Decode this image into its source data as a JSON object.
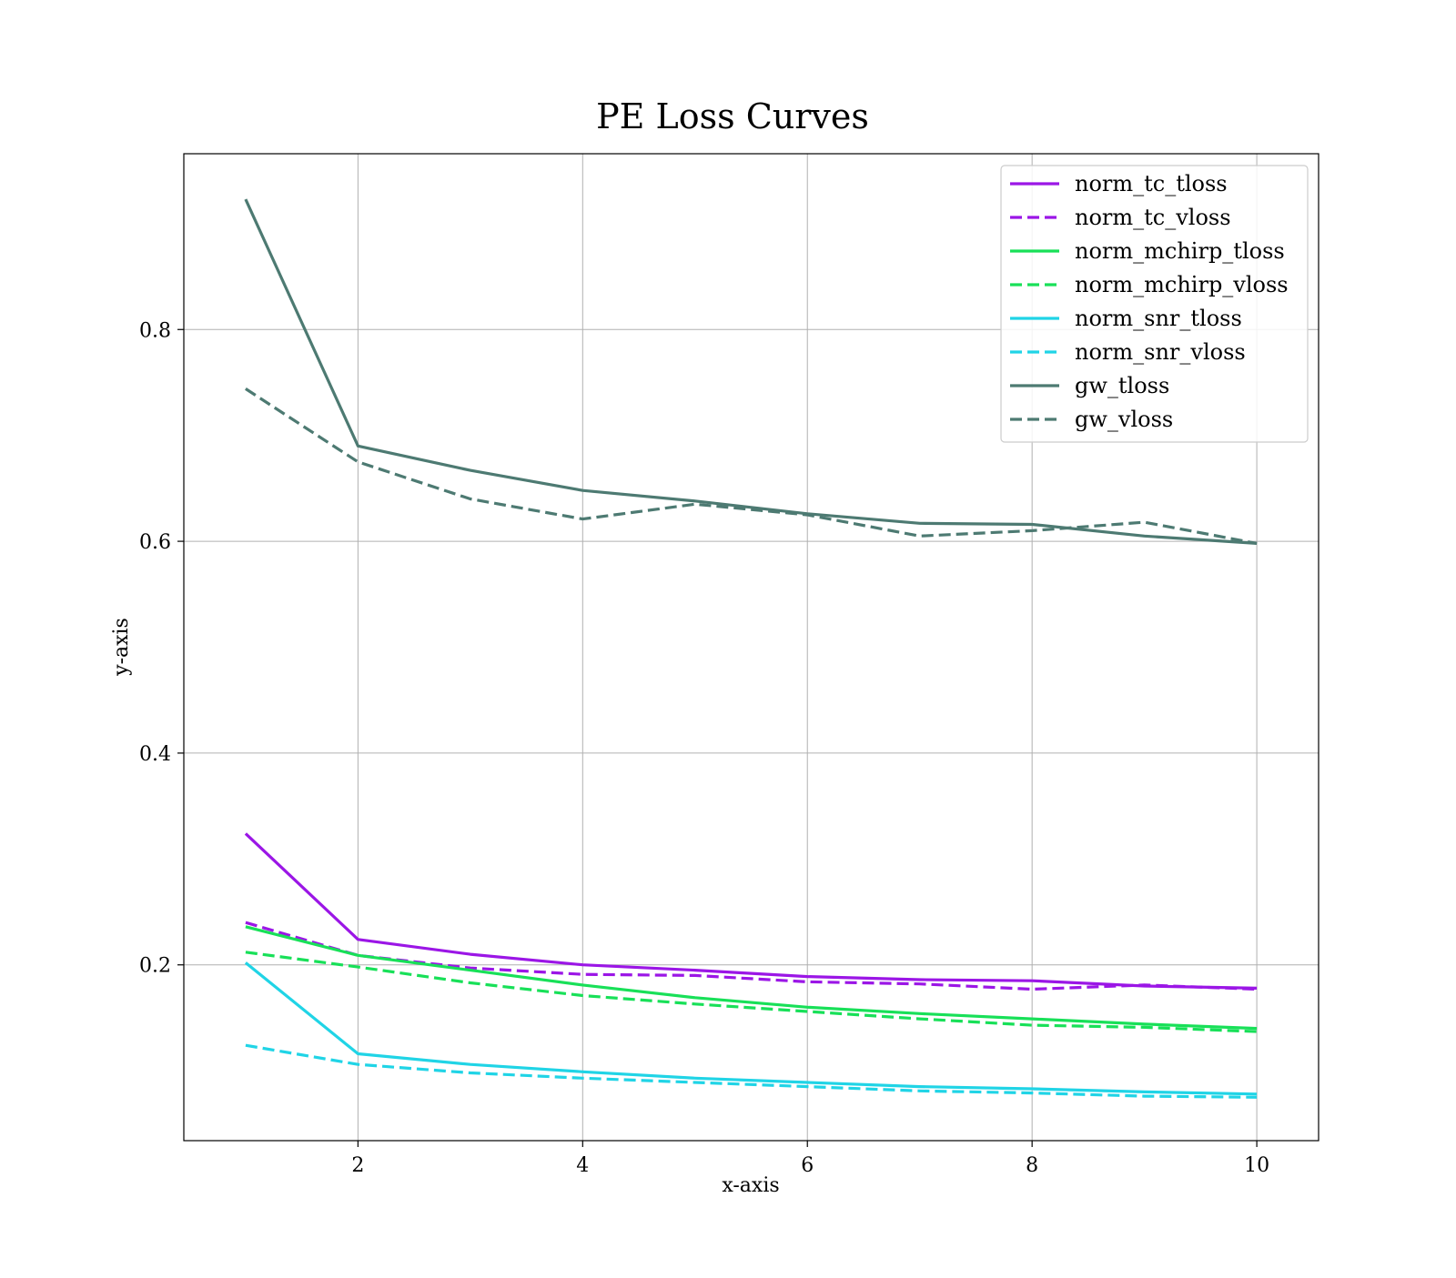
{
  "chart_data": {
    "type": "line",
    "title": "PE Loss Curves",
    "xlabel": "x-axis",
    "ylabel": "y-axis",
    "xlim": [
      0.45,
      10.55
    ],
    "ylim": [
      0.034,
      0.966
    ],
    "xticks": [
      2,
      4,
      6,
      8,
      10
    ],
    "yticks": [
      0.2,
      0.4,
      0.6,
      0.8
    ],
    "xtick_labels": [
      "2",
      "4",
      "6",
      "8",
      "10"
    ],
    "ytick_labels": [
      "0.2",
      "0.4",
      "0.6",
      "0.8"
    ],
    "grid": true,
    "legend_position": "top-right",
    "x": [
      1,
      2,
      3,
      4,
      5,
      6,
      7,
      8,
      9,
      10
    ],
    "series": [
      {
        "name": "norm_tc_tloss",
        "color": "#9b16e6",
        "dash": "solid",
        "values": [
          0.324,
          0.224,
          0.21,
          0.2,
          0.195,
          0.189,
          0.186,
          0.185,
          0.18,
          0.178
        ]
      },
      {
        "name": "norm_tc_vloss",
        "color": "#9b16e6",
        "dash": "dashed",
        "values": [
          0.24,
          0.209,
          0.197,
          0.191,
          0.19,
          0.184,
          0.182,
          0.177,
          0.181,
          0.177
        ]
      },
      {
        "name": "norm_mchirp_tloss",
        "color": "#18e058",
        "dash": "solid",
        "values": [
          0.236,
          0.209,
          0.195,
          0.181,
          0.169,
          0.16,
          0.154,
          0.149,
          0.144,
          0.14
        ]
      },
      {
        "name": "norm_mchirp_vloss",
        "color": "#18e058",
        "dash": "dashed",
        "values": [
          0.212,
          0.198,
          0.183,
          0.171,
          0.163,
          0.156,
          0.149,
          0.143,
          0.141,
          0.137
        ]
      },
      {
        "name": "norm_snr_tloss",
        "color": "#20d4e6",
        "dash": "solid",
        "values": [
          0.202,
          0.116,
          0.106,
          0.099,
          0.093,
          0.089,
          0.085,
          0.083,
          0.08,
          0.078
        ]
      },
      {
        "name": "norm_snr_vloss",
        "color": "#20d4e6",
        "dash": "dashed",
        "values": [
          0.124,
          0.106,
          0.098,
          0.093,
          0.089,
          0.085,
          0.081,
          0.079,
          0.076,
          0.075
        ]
      },
      {
        "name": "gw_tloss",
        "color": "#4d7a72",
        "dash": "solid",
        "values": [
          0.923,
          0.69,
          0.667,
          0.648,
          0.638,
          0.626,
          0.617,
          0.616,
          0.605,
          0.598
        ]
      },
      {
        "name": "gw_vloss",
        "color": "#4d7a72",
        "dash": "dashed",
        "values": [
          0.744,
          0.675,
          0.64,
          0.621,
          0.635,
          0.625,
          0.605,
          0.61,
          0.618,
          0.598
        ]
      }
    ]
  }
}
